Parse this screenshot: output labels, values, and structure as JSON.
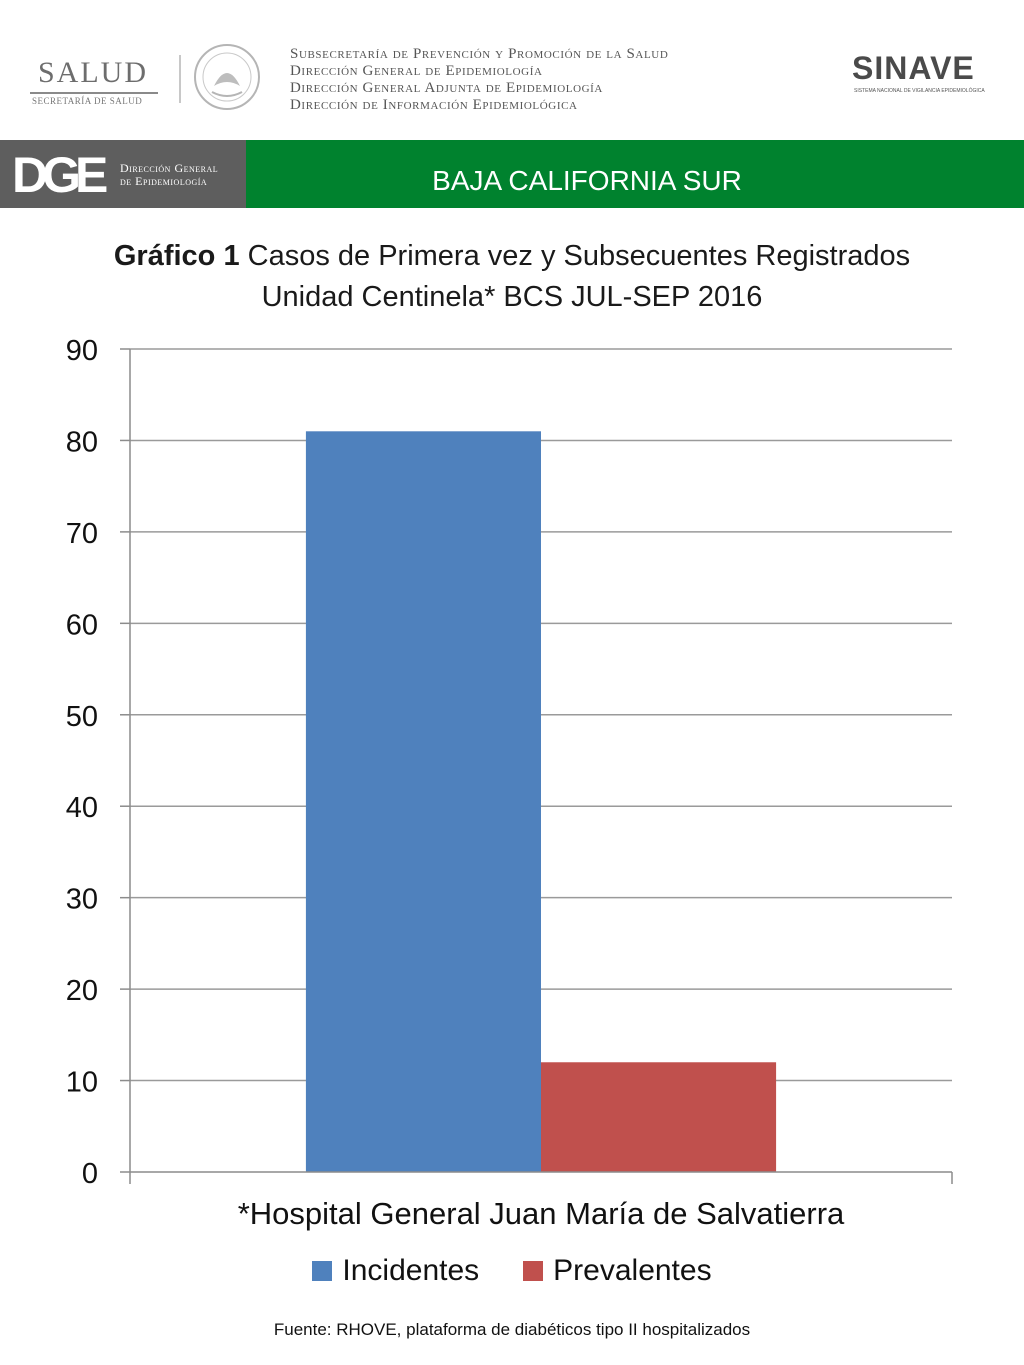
{
  "header": {
    "salud_logo": {
      "word": "SALUD",
      "subtitle": "SECRETARÍA DE SALUD"
    },
    "org_lines": [
      "Subsecretaría de Prevención y Promoción de la Salud",
      "Dirección General de Epidemiología",
      "Dirección General Adjunta de Epidemiología",
      "Dirección de Información Epidemiológica"
    ],
    "sinave_logo": {
      "word": "SINAVE",
      "subtitle": "SISTEMA NACIONAL DE VIGILANCIA EPIDEMIOLÓGICA"
    }
  },
  "banner": {
    "dge_mark": "DGE",
    "dge_text_line1": "Dirección General",
    "dge_text_line2": "de Epidemiología",
    "state": "BAJA CALIFORNIA SUR",
    "colors": {
      "banner_green": "#00822e",
      "dge_gray": "#5e5e5e"
    }
  },
  "chart_data": {
    "type": "bar",
    "title_bold": "Gráfico 1",
    "title_rest": " Casos de Primera vez y Subsecuentes Registrados",
    "subtitle": "Unidad Centinela* BCS JUL-SEP 2016",
    "categories": [
      "*Hospital General Juan María de Salvatierra"
    ],
    "series": [
      {
        "name": "Incidentes",
        "values": [
          81
        ],
        "color": "#4f81bd"
      },
      {
        "name": "Prevalentes",
        "values": [
          12
        ],
        "color": "#c0504d"
      }
    ],
    "ylim": [
      0,
      90
    ],
    "yticks": [
      0,
      10,
      20,
      30,
      40,
      50,
      60,
      70,
      80,
      90
    ],
    "grid": true,
    "legend_position": "bottom"
  },
  "footer": {
    "source": "Fuente: RHOVE, plataforma de diabéticos tipo II hospitalizados"
  }
}
